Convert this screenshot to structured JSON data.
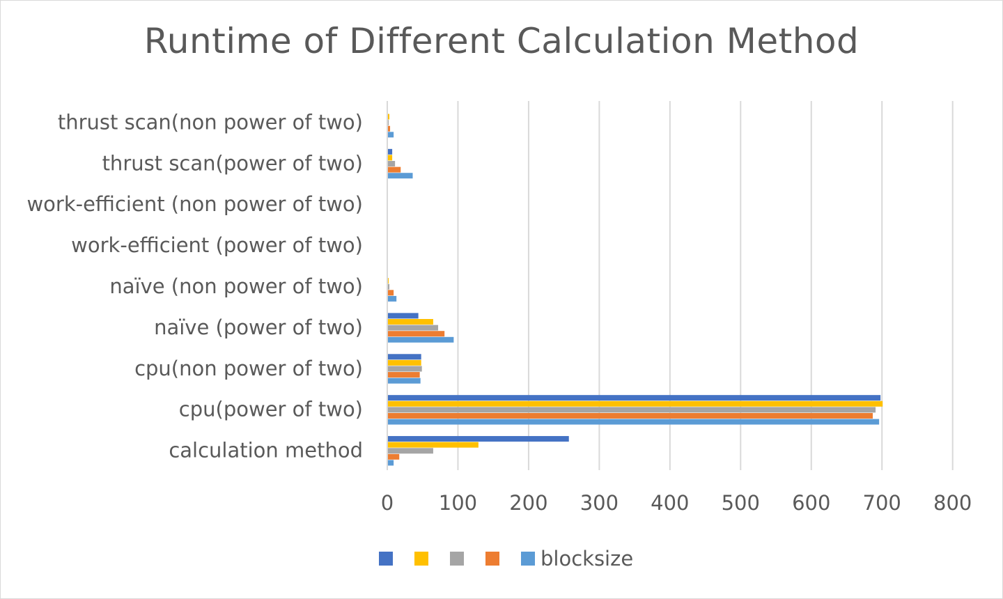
{
  "chart_data": {
    "type": "bar",
    "orientation": "horizontal",
    "title": "Runtime of Different Calculation Method",
    "xlabel": "",
    "ylabel": "",
    "xlim": [
      0,
      800
    ],
    "x_ticks": [
      "0",
      "100",
      "200",
      "300",
      "400",
      "500",
      "600",
      "700",
      "800"
    ],
    "grid": "vertical",
    "legend_position": "bottom",
    "categories": [
      "calculation method",
      "cpu(power of two)",
      "cpu(non power of two)",
      "naïve (power of two)",
      "naïve (non power of two)",
      "work-efficient (power of two)",
      "work-efficient (non power of two)",
      "thrust scan(power of two)",
      "thrust scan(non power of two)"
    ],
    "series": [
      {
        "name": "",
        "color": "#4472C4",
        "values": [
          256,
          697,
          47,
          43,
          0,
          0,
          0,
          6,
          0
        ]
      },
      {
        "name": "",
        "color": "#FFC000",
        "values": [
          128,
          700,
          47,
          64,
          1,
          0,
          0,
          6,
          2
        ]
      },
      {
        "name": "",
        "color": "#A5A5A5",
        "values": [
          64,
          690,
          48,
          71,
          2,
          0,
          0,
          10,
          1
        ]
      },
      {
        "name": "",
        "color": "#ED7D31",
        "values": [
          16,
          686,
          45,
          80,
          8,
          0,
          0,
          18,
          3
        ]
      },
      {
        "name": "blocksize",
        "color": "#5B9BD5",
        "values": [
          8,
          695,
          46,
          93,
          12,
          0,
          0,
          35,
          8
        ]
      }
    ]
  }
}
